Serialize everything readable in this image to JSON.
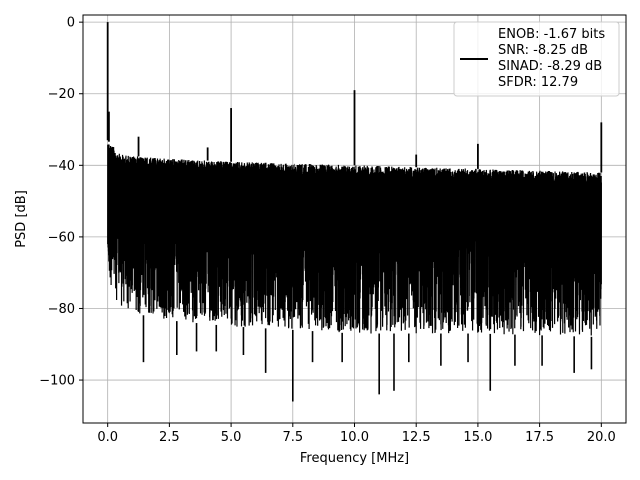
{
  "chart_data": {
    "type": "line",
    "title": "",
    "xlabel": "Frequency [MHz]",
    "ylabel": "PSD [dB]",
    "xlim": [
      -1.0,
      21.0
    ],
    "ylim": [
      -112,
      2
    ],
    "xticks": [
      0.0,
      2.5,
      5.0,
      7.5,
      10.0,
      12.5,
      15.0,
      17.5,
      20.0
    ],
    "xtick_labels": [
      "0.0",
      "2.5",
      "5.0",
      "7.5",
      "10.0",
      "12.5",
      "15.0",
      "17.5",
      "20.0"
    ],
    "yticks": [
      0,
      -20,
      -40,
      -60,
      -80,
      -100
    ],
    "ytick_labels": [
      "0",
      "−20",
      "−40",
      "−60",
      "−80",
      "−100"
    ],
    "grid": true,
    "legend_position": "top-right",
    "line_color": "#000000",
    "legend": {
      "lines": [
        "ENOB: -1.67 bits",
        "SNR: -8.25 dB",
        "SINAD: -8.29 dB",
        "SFDR: 12.79"
      ]
    },
    "series": [
      {
        "noise_floor_upper": [
          [
            0.0,
            -33
          ],
          [
            0.5,
            -37
          ],
          [
            2.0,
            -38
          ],
          [
            5.0,
            -39
          ],
          [
            10.0,
            -40
          ],
          [
            15.0,
            -41
          ],
          [
            20.0,
            -42
          ]
        ],
        "noise_floor_lower": [
          [
            0.0,
            -72
          ],
          [
            0.5,
            -80
          ],
          [
            2.0,
            -83
          ],
          [
            5.0,
            -85
          ],
          [
            10.0,
            -87
          ],
          [
            15.0,
            -87
          ],
          [
            20.0,
            -88
          ]
        ],
        "deep_dips": [
          [
            1.45,
            -95
          ],
          [
            2.8,
            -93
          ],
          [
            3.6,
            -92
          ],
          [
            4.4,
            -92
          ],
          [
            5.5,
            -93
          ],
          [
            6.4,
            -98
          ],
          [
            7.5,
            -106
          ],
          [
            8.3,
            -95
          ],
          [
            9.5,
            -95
          ],
          [
            11.0,
            -104
          ],
          [
            11.6,
            -103
          ],
          [
            12.2,
            -95
          ],
          [
            13.5,
            -96
          ],
          [
            14.6,
            -95
          ],
          [
            15.5,
            -103
          ],
          [
            16.5,
            -96
          ],
          [
            17.6,
            -96
          ],
          [
            18.9,
            -98
          ],
          [
            19.6,
            -97
          ]
        ],
        "spurs": [
          [
            0.0,
            0
          ],
          [
            0.05,
            -25
          ],
          [
            1.25,
            -32
          ],
          [
            4.05,
            -35
          ],
          [
            5.0,
            -24
          ],
          [
            10.0,
            -19
          ],
          [
            12.5,
            -37
          ],
          [
            15.0,
            -34
          ],
          [
            20.0,
            -28
          ]
        ]
      }
    ]
  }
}
